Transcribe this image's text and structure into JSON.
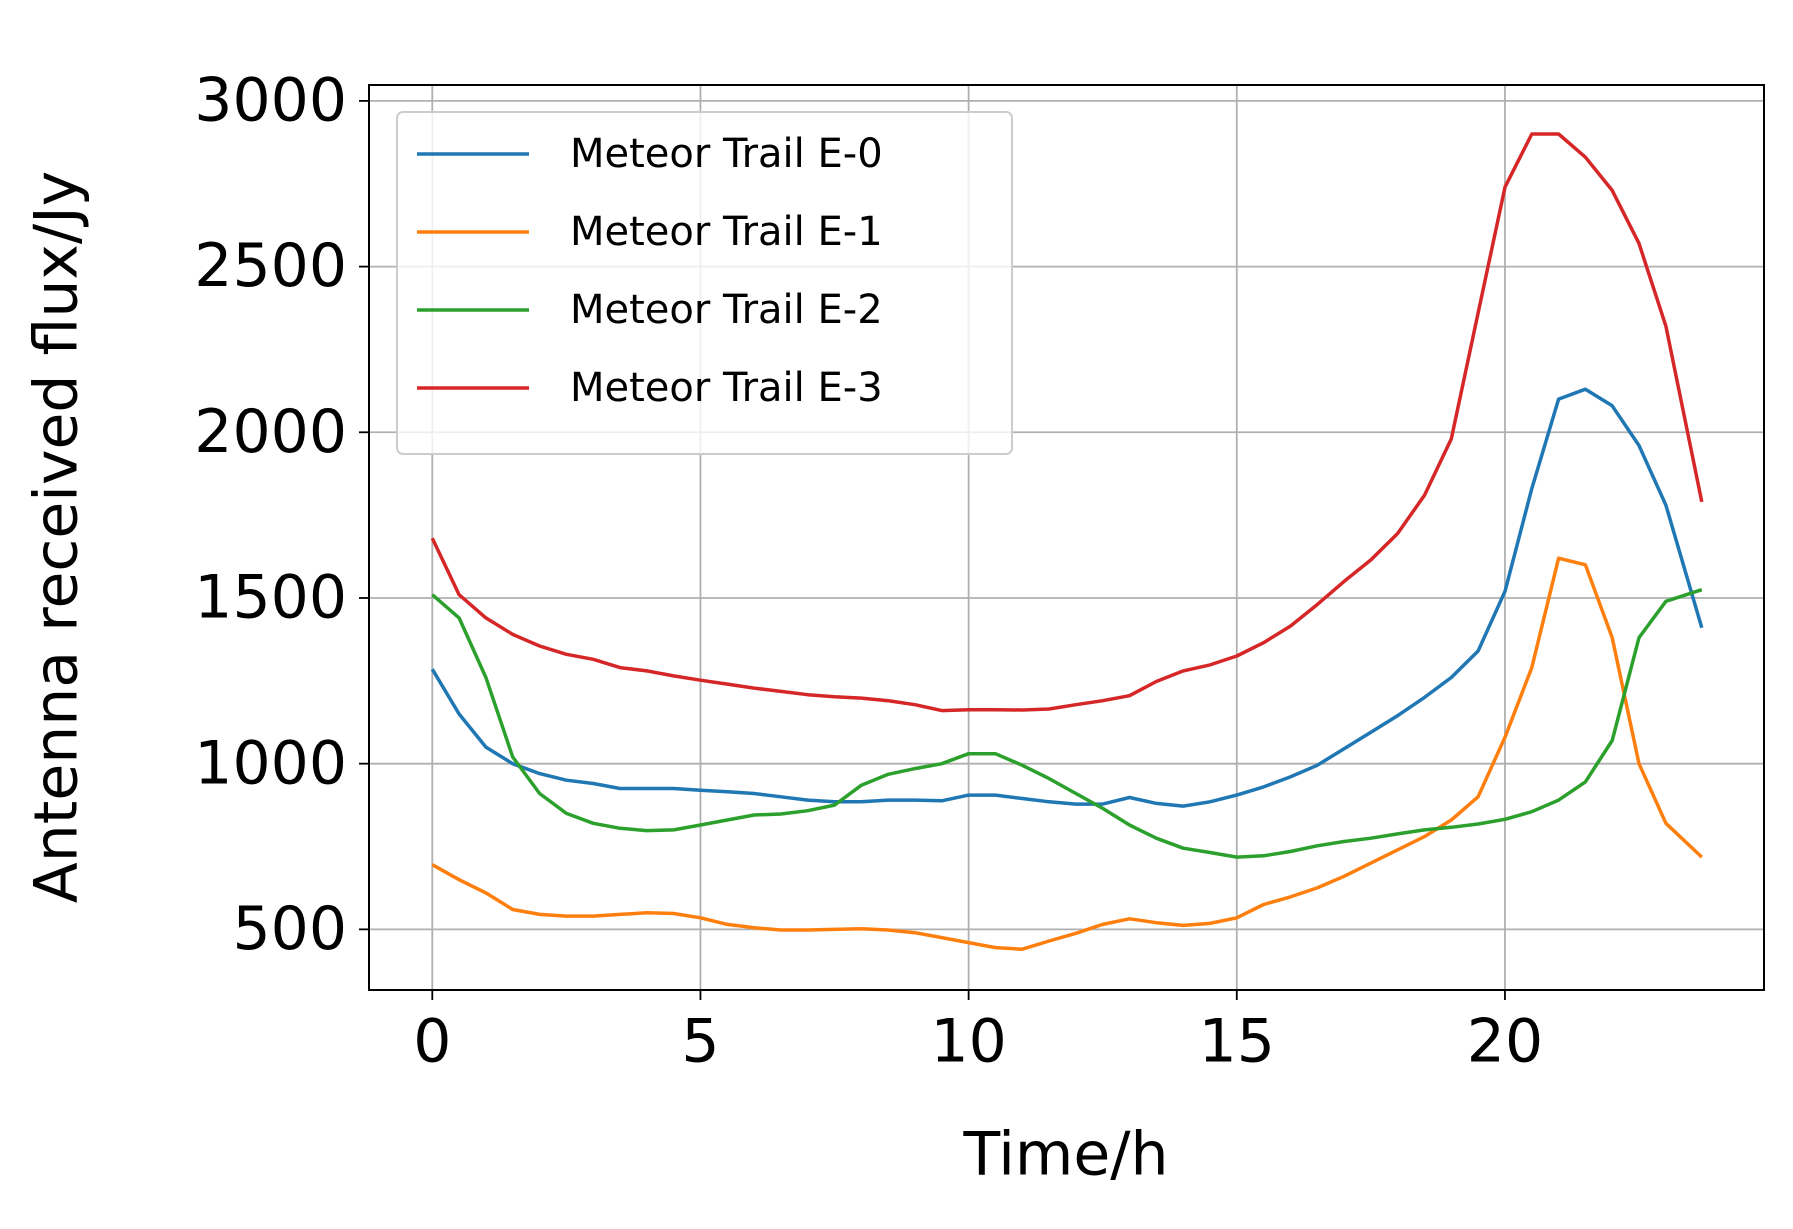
{
  "chart_data": {
    "type": "line",
    "xlabel": "Time/h",
    "ylabel": "Antenna received flux/Jy",
    "x": [
      0,
      0.5,
      1,
      1.5,
      2,
      2.5,
      3,
      3.5,
      4,
      4.5,
      5,
      5.5,
      6,
      6.5,
      7,
      7.5,
      8,
      8.5,
      9,
      9.5,
      10,
      10.5,
      11,
      11.5,
      12,
      12.5,
      13,
      13.5,
      14,
      14.5,
      15,
      15.5,
      16,
      16.5,
      17,
      17.5,
      18,
      18.5,
      19,
      19.5,
      20,
      20.5,
      21,
      21.5,
      22,
      22.5,
      23,
      23.67
    ],
    "series": [
      {
        "name": "Meteor Trail E-0",
        "color": "#1f77b4",
        "values": [
          1285,
          1150,
          1050,
          1000,
          970,
          950,
          940,
          925,
          925,
          925,
          920,
          915,
          910,
          900,
          890,
          885,
          885,
          890,
          890,
          888,
          905,
          905,
          895,
          885,
          878,
          878,
          898,
          880,
          872,
          885,
          905,
          930,
          960,
          995,
          1045,
          1095,
          1145,
          1200,
          1260,
          1340,
          1520,
          1830,
          2100,
          2130,
          2080,
          1960,
          1780,
          1410
        ]
      },
      {
        "name": "Meteor Trail E-1",
        "color": "#ff7f0e",
        "values": [
          695,
          650,
          610,
          560,
          545,
          540,
          540,
          545,
          550,
          548,
          535,
          515,
          505,
          498,
          498,
          500,
          502,
          498,
          490,
          475,
          460,
          445,
          440,
          465,
          488,
          515,
          532,
          520,
          512,
          518,
          535,
          575,
          598,
          625,
          660,
          700,
          740,
          780,
          830,
          900,
          1080,
          1290,
          1620,
          1600,
          1380,
          1000,
          820,
          718
        ]
      },
      {
        "name": "Meteor Trail E-2",
        "color": "#2ca02c",
        "values": [
          1510,
          1440,
          1260,
          1020,
          910,
          850,
          820,
          805,
          798,
          800,
          815,
          830,
          845,
          848,
          858,
          875,
          935,
          968,
          985,
          1000,
          1030,
          1030,
          995,
          955,
          910,
          865,
          815,
          775,
          745,
          732,
          718,
          722,
          735,
          752,
          765,
          775,
          788,
          800,
          808,
          818,
          832,
          855,
          890,
          945,
          1070,
          1380,
          1490,
          1525
        ]
      },
      {
        "name": "Meteor Trail E-3",
        "color": "#d62728",
        "values": [
          1680,
          1510,
          1440,
          1390,
          1355,
          1330,
          1315,
          1290,
          1280,
          1265,
          1252,
          1240,
          1228,
          1218,
          1208,
          1202,
          1198,
          1190,
          1178,
          1160,
          1163,
          1163,
          1162,
          1165,
          1178,
          1190,
          1205,
          1248,
          1280,
          1298,
          1325,
          1365,
          1415,
          1480,
          1550,
          1615,
          1695,
          1810,
          1980,
          2360,
          2740,
          2900,
          2900,
          2830,
          2730,
          2570,
          2320,
          1790
        ]
      }
    ],
    "xlim": [
      -1.18,
      24.83
    ],
    "ylim": [
      317,
      3048
    ],
    "xticks": [
      0,
      5,
      10,
      15,
      20
    ],
    "yticks": [
      500,
      1000,
      1500,
      2000,
      2500,
      3000
    ],
    "grid": true,
    "legend": "upper left"
  }
}
